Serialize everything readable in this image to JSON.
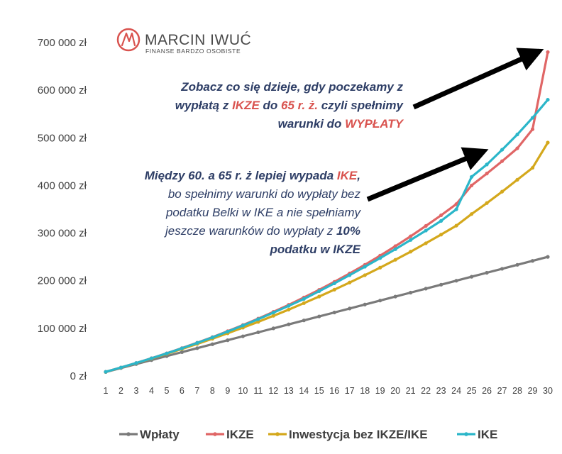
{
  "logo": {
    "title": "MARCIN IWUĆ",
    "subtitle": "FINANSE BARDZO OSOBISTE",
    "color": "#d9534f"
  },
  "chart_data": {
    "type": "line",
    "x": [
      1,
      2,
      3,
      4,
      5,
      6,
      7,
      8,
      9,
      10,
      11,
      12,
      13,
      14,
      15,
      16,
      17,
      18,
      19,
      20,
      21,
      22,
      23,
      24,
      25,
      26,
      27,
      28,
      29,
      30
    ],
    "ylim": [
      0,
      700000
    ],
    "yticks": [
      0,
      100000,
      200000,
      300000,
      400000,
      500000,
      600000,
      700000
    ],
    "ytick_labels": [
      "0 zł",
      "100 000 zł",
      "200 000 zł",
      "300 000 zł",
      "400 000 zł",
      "500 000 zł",
      "600 000 zł",
      "700 000 zł"
    ],
    "grid": false,
    "legend_position": "bottom",
    "series": [
      {
        "name": "Wpłaty",
        "color": "#7a7a7a",
        "values": [
          8333,
          16667,
          25000,
          33333,
          41667,
          50000,
          58333,
          66667,
          75000,
          83333,
          91667,
          100000,
          108333,
          116667,
          125000,
          133333,
          141667,
          150000,
          158333,
          166667,
          175000,
          183333,
          191667,
          200000,
          208333,
          216667,
          225000,
          233333,
          241667,
          250000
        ]
      },
      {
        "name": "IKZE",
        "color": "#e06666",
        "values": [
          8700,
          17800,
          27300,
          37200,
          47600,
          58500,
          69800,
          81600,
          94000,
          107000,
          120400,
          134600,
          149300,
          164800,
          180800,
          197600,
          215200,
          233400,
          252600,
          272500,
          293300,
          315000,
          337400,
          360800,
          400000,
          425000,
          451000,
          478000,
          518000,
          680000
        ]
      },
      {
        "name": "Inwestycja bez IKZE/IKE",
        "color": "#d4a81c",
        "values": [
          8600,
          17600,
          26900,
          36500,
          46400,
          56600,
          67300,
          78200,
          89600,
          101400,
          113600,
          126300,
          139300,
          152900,
          166800,
          181200,
          196200,
          211600,
          227500,
          244000,
          261000,
          278600,
          296800,
          315600,
          340000,
          363000,
          387000,
          412000,
          437000,
          490000
        ]
      },
      {
        "name": "IKE",
        "color": "#2bb6c9",
        "values": [
          8700,
          17800,
          27200,
          37100,
          47300,
          58100,
          69400,
          81000,
          93200,
          105900,
          119200,
          133000,
          147200,
          161800,
          178200,
          194500,
          211700,
          229400,
          247500,
          266200,
          285500,
          305200,
          325600,
          350000,
          418000,
          444000,
          475000,
          507000,
          542000,
          580000
        ]
      }
    ],
    "annotations": [
      {
        "lines": [
          [
            "Zobacz co się dzieje, gdy poczekamy z"
          ],
          [
            "wypłatą z ",
            "IKZE",
            " do ",
            "65 r. ż.",
            " czyli spełnimy"
          ],
          [
            "warunki do ",
            "WYPŁATY"
          ]
        ]
      },
      {
        "lines": [
          [
            "Między 60. a 65 r. ż lepiej wypada ",
            "IKE",
            ","
          ],
          [
            "bo spełnimy warunki do wypłaty bez"
          ],
          [
            "podatku Belki w IKE a nie spełniamy"
          ],
          [
            "jeszcze warunków do wypłaty z ",
            "10%"
          ],
          [
            "podatku w IKZE"
          ]
        ]
      }
    ]
  }
}
